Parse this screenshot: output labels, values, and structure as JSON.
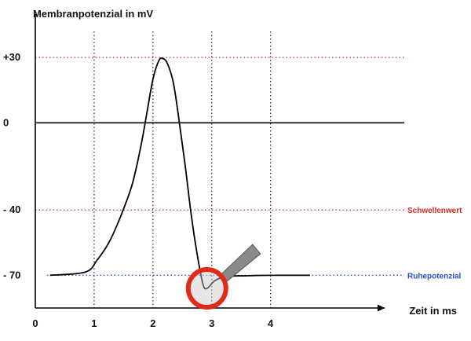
{
  "chart_data": {
    "type": "line",
    "ylabel": "Membranpotenzial in mV",
    "xlabel": "Zeit in ms",
    "x_ticks": [
      0,
      1,
      2,
      3,
      4
    ],
    "y_ticks": [
      30,
      0,
      -40,
      -70
    ],
    "y_tick_labels": [
      "+30",
      "0",
      "- 40",
      "- 70"
    ],
    "xlim": [
      0,
      5.94
    ],
    "ylim": [
      -85,
      47
    ],
    "vertical_gridlines_at": [
      1,
      2,
      3,
      4
    ],
    "reference_lines": [
      {
        "label": "Schwellenwert",
        "y": -40,
        "color": "#d42a1e"
      },
      {
        "label": "Ruhepotenzial",
        "y": -70,
        "color": "#2a4fd4"
      }
    ],
    "series": [
      {
        "color": "#000000",
        "points": [
          [
            0.25,
            -70
          ],
          [
            0.85,
            -68.5
          ],
          [
            1.05,
            -63
          ],
          [
            1.25,
            -55
          ],
          [
            1.45,
            -43
          ],
          [
            1.65,
            -28
          ],
          [
            1.8,
            -10
          ],
          [
            1.9,
            5
          ],
          [
            2.0,
            20
          ],
          [
            2.1,
            28.5
          ],
          [
            2.17,
            29.5
          ],
          [
            2.25,
            27
          ],
          [
            2.35,
            18
          ],
          [
            2.45,
            0
          ],
          [
            2.55,
            -20
          ],
          [
            2.65,
            -42
          ],
          [
            2.75,
            -60
          ],
          [
            2.85,
            -74
          ],
          [
            2.92,
            -76
          ],
          [
            3.05,
            -72.5
          ],
          [
            3.25,
            -70.5
          ],
          [
            3.6,
            -70.2
          ],
          [
            4.0,
            -70
          ],
          [
            4.67,
            -70
          ]
        ]
      }
    ],
    "highlight": {
      "x": 2.92,
      "y": -76,
      "marker": "circle-with-pointer",
      "color": "#e02a1a"
    }
  }
}
